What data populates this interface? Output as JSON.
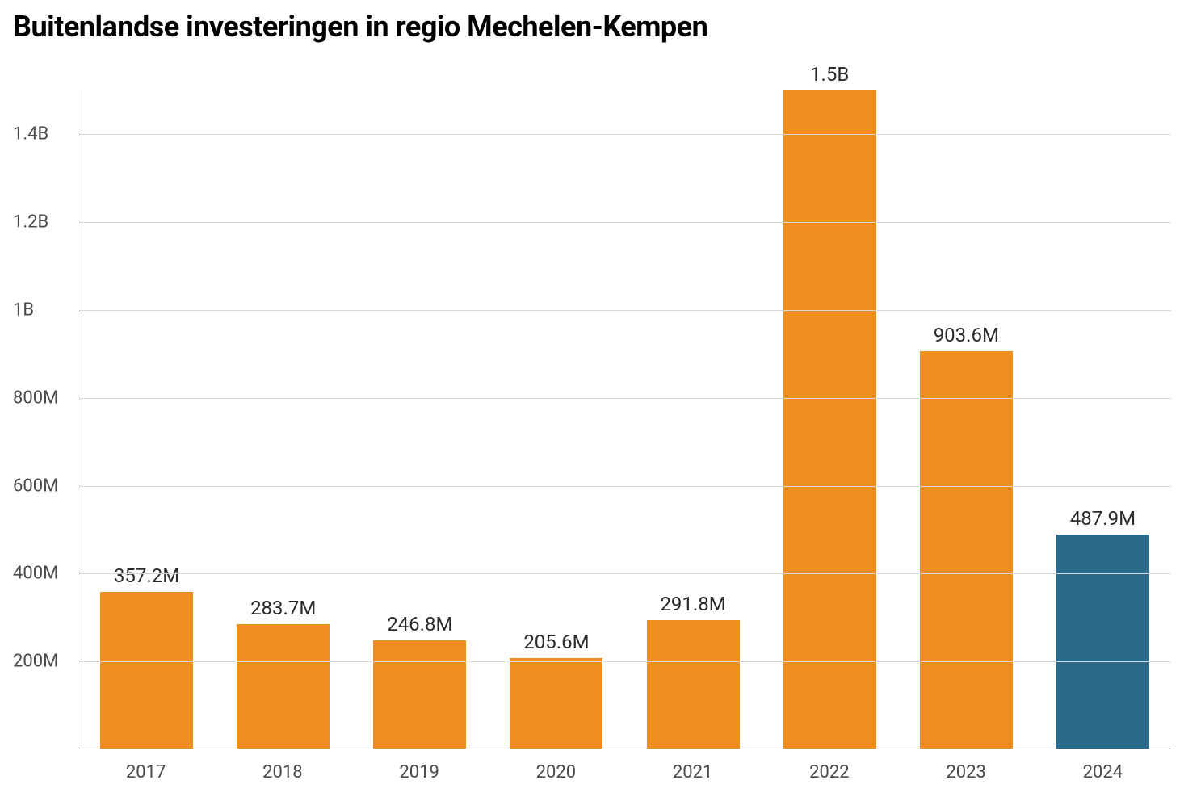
{
  "chart": {
    "type": "bar",
    "title": "Buitenlandse investeringen in regio Mechelen-Kempen",
    "title_fontsize": 36,
    "title_fontweight": 700,
    "title_color": "#000000",
    "background_color": "#ffffff",
    "grid_color": "#d8d8d8",
    "axis_line_color": "#333333",
    "axis_label_color": "#4a4a4a",
    "value_label_color": "#2b2b2b",
    "axis_label_fontsize": 22,
    "value_label_fontsize": 24,
    "bar_width_ratio": 0.68,
    "ylim": [
      0,
      1500000000
    ],
    "y_ticks": [
      {
        "value": 200000000,
        "label": "200M"
      },
      {
        "value": 400000000,
        "label": "400M"
      },
      {
        "value": 600000000,
        "label": "600M"
      },
      {
        "value": 800000000,
        "label": "800M"
      },
      {
        "value": 1000000000,
        "label": "1B"
      },
      {
        "value": 1200000000,
        "label": "1.2B"
      },
      {
        "value": 1400000000,
        "label": "1.4B"
      }
    ],
    "plot": {
      "left_margin": 80,
      "top_offset": 50,
      "axis_bottom_offset": 54,
      "x_axis_label_offset": 16
    },
    "bars": [
      {
        "category": "2017",
        "value": 357200000,
        "label": "357.2M",
        "color": "#ee8f1f"
      },
      {
        "category": "2018",
        "value": 283700000,
        "label": "283.7M",
        "color": "#ee8f1f"
      },
      {
        "category": "2019",
        "value": 246800000,
        "label": "246.8M",
        "color": "#ee8f1f"
      },
      {
        "category": "2020",
        "value": 205600000,
        "label": "205.6M",
        "color": "#ee8f1f"
      },
      {
        "category": "2021",
        "value": 291800000,
        "label": "291.8M",
        "color": "#ee8f1f"
      },
      {
        "category": "2022",
        "value": 1500000000,
        "label": "1.5B",
        "color": "#ee8f1f"
      },
      {
        "category": "2023",
        "value": 903600000,
        "label": "903.6M",
        "color": "#ee8f1f"
      },
      {
        "category": "2024",
        "value": 487900000,
        "label": "487.9M",
        "color": "#2a6a8a"
      }
    ]
  }
}
